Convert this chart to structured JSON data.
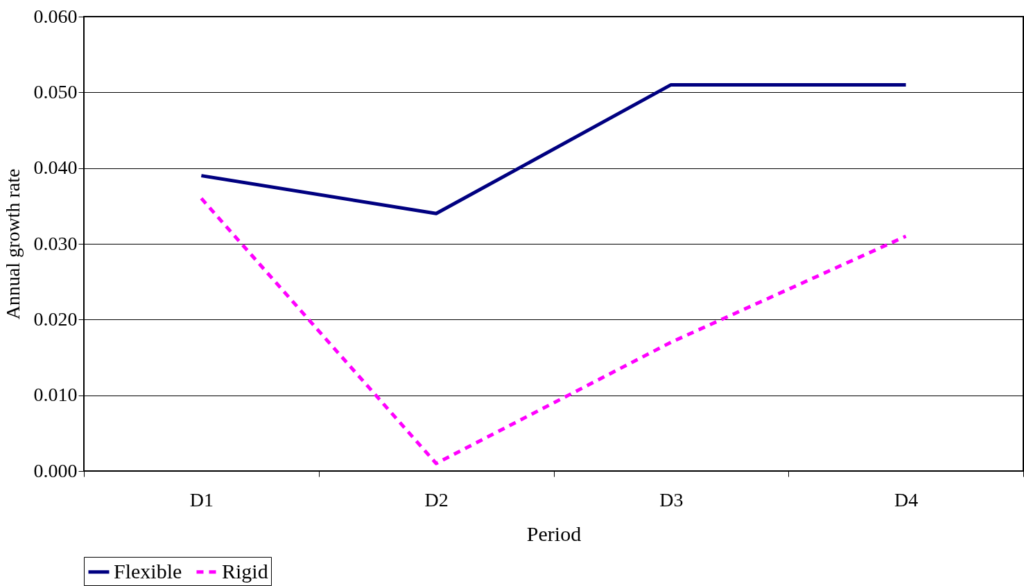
{
  "chart_data": {
    "type": "line",
    "xlabel": "Period",
    "ylabel": "Annual growth rate",
    "categories": [
      "D1",
      "D2",
      "D3",
      "D4"
    ],
    "series": [
      {
        "name": "Flexible",
        "color": "#000080",
        "line_style": "solid",
        "values": [
          0.039,
          0.034,
          0.051,
          0.051
        ]
      },
      {
        "name": "Rigid",
        "color": "#ff00ff",
        "line_style": "dashed",
        "values": [
          0.036,
          0.001,
          0.017,
          0.031
        ]
      }
    ],
    "ylim": [
      0,
      0.06
    ],
    "yticks": [
      {
        "value": 0,
        "label": "0.000"
      },
      {
        "value": 0.01,
        "label": "0.010"
      },
      {
        "value": 0.02,
        "label": "0.020"
      },
      {
        "value": 0.03,
        "label": "0.030"
      },
      {
        "value": 0.04,
        "label": "0.040"
      },
      {
        "value": 0.05,
        "label": "0.050"
      },
      {
        "value": 0.06,
        "label": "0.060"
      }
    ],
    "grid": "y",
    "legend": "bottom",
    "marker": "none"
  }
}
